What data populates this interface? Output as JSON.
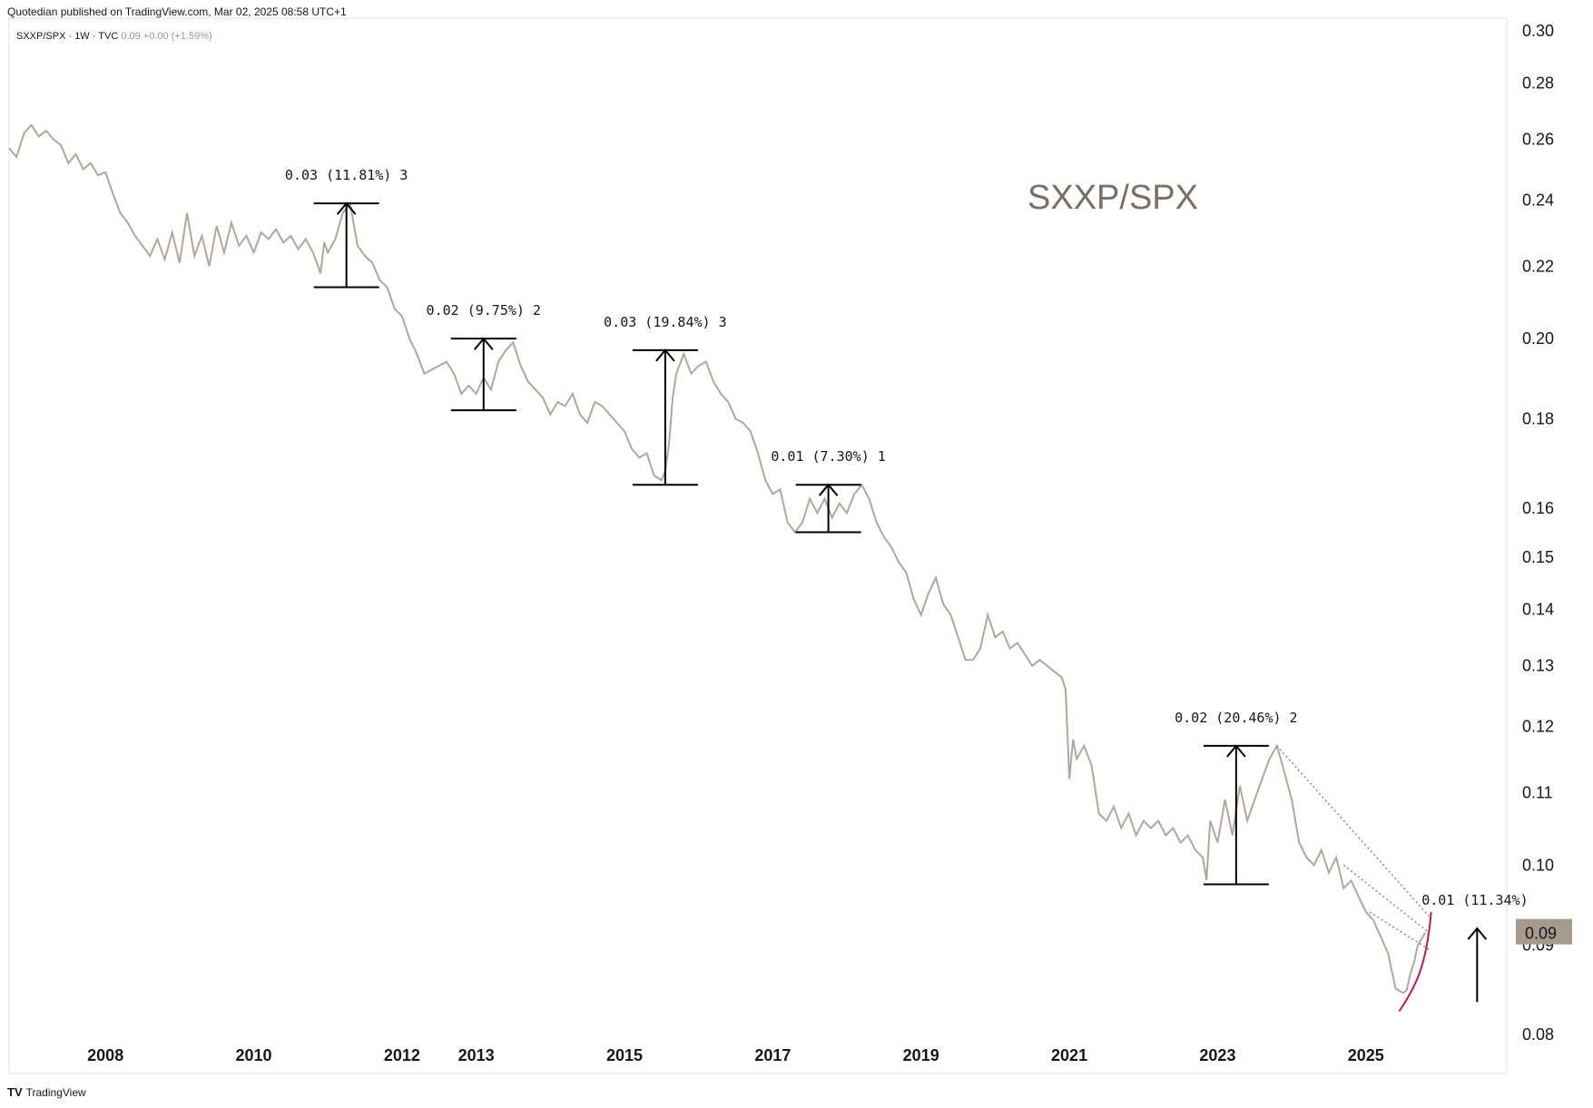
{
  "header": {
    "published": "Quotedian published on TradingView.com, Mar 02, 2025 08:58 UTC+1",
    "symbol": "SXXP/SPX · 1W · TVC",
    "last_value": "0.09 +0.00 (+1.59%)"
  },
  "footer": {
    "logo": "TV",
    "brand": "TradingView"
  },
  "colors": {
    "price_line": "#b0a79d",
    "curve": "#c2185b",
    "price_tag_bg": "#a69a8d",
    "trend_dots": "#888888"
  },
  "chart_data": {
    "type": "line",
    "title": "SXXP/SPX",
    "y_scale": "log",
    "ylim": [
      0.076,
      0.305
    ],
    "xlim": [
      2006.2,
      2026.4
    ],
    "x_ticks": [
      {
        "x": 2007.5,
        "label": "2008"
      },
      {
        "x": 2009.5,
        "label": "2010"
      },
      {
        "x": 2011.5,
        "label": "2012"
      },
      {
        "x": 2012.5,
        "label": "2013"
      },
      {
        "x": 2014.5,
        "label": "2015"
      },
      {
        "x": 2016.5,
        "label": "2017"
      },
      {
        "x": 2018.5,
        "label": "2019"
      },
      {
        "x": 2020.5,
        "label": "2021"
      },
      {
        "x": 2022.5,
        "label": "2023"
      },
      {
        "x": 2024.5,
        "label": "2025"
      }
    ],
    "y_ticks": [
      {
        "v": 0.3,
        "label": "0.30"
      },
      {
        "v": 0.28,
        "label": "0.28"
      },
      {
        "v": 0.26,
        "label": "0.26"
      },
      {
        "v": 0.24,
        "label": "0.24"
      },
      {
        "v": 0.22,
        "label": "0.22"
      },
      {
        "v": 0.2,
        "label": "0.20"
      },
      {
        "v": 0.18,
        "label": "0.18"
      },
      {
        "v": 0.16,
        "label": "0.16"
      },
      {
        "v": 0.15,
        "label": "0.15"
      },
      {
        "v": 0.14,
        "label": "0.14"
      },
      {
        "v": 0.13,
        "label": "0.13"
      },
      {
        "v": 0.12,
        "label": "0.12"
      },
      {
        "v": 0.11,
        "label": "0.11"
      },
      {
        "v": 0.1,
        "label": "0.10"
      },
      {
        "v": 0.09,
        "label": "0.09"
      },
      {
        "v": 0.08,
        "label": "0.08"
      }
    ],
    "price_tag": {
      "v": 0.0915,
      "label": "0.09"
    },
    "series": [
      {
        "points": [
          [
            2006.2,
            0.257
          ],
          [
            2006.3,
            0.254
          ],
          [
            2006.4,
            0.262
          ],
          [
            2006.5,
            0.265
          ],
          [
            2006.6,
            0.261
          ],
          [
            2006.7,
            0.263
          ],
          [
            2006.8,
            0.26
          ],
          [
            2006.9,
            0.258
          ],
          [
            2007.0,
            0.252
          ],
          [
            2007.1,
            0.255
          ],
          [
            2007.2,
            0.25
          ],
          [
            2007.3,
            0.252
          ],
          [
            2007.4,
            0.248
          ],
          [
            2007.5,
            0.249
          ],
          [
            2007.6,
            0.242
          ],
          [
            2007.7,
            0.236
          ],
          [
            2007.8,
            0.233
          ],
          [
            2007.9,
            0.229
          ],
          [
            2008.0,
            0.226
          ],
          [
            2008.1,
            0.223
          ],
          [
            2008.2,
            0.228
          ],
          [
            2008.3,
            0.222
          ],
          [
            2008.4,
            0.23
          ],
          [
            2008.5,
            0.221
          ],
          [
            2008.6,
            0.236
          ],
          [
            2008.7,
            0.223
          ],
          [
            2008.8,
            0.229
          ],
          [
            2008.9,
            0.22
          ],
          [
            2009.0,
            0.232
          ],
          [
            2009.1,
            0.224
          ],
          [
            2009.2,
            0.233
          ],
          [
            2009.3,
            0.226
          ],
          [
            2009.4,
            0.229
          ],
          [
            2009.5,
            0.224
          ],
          [
            2009.6,
            0.23
          ],
          [
            2009.7,
            0.228
          ],
          [
            2009.8,
            0.231
          ],
          [
            2009.9,
            0.227
          ],
          [
            2010.0,
            0.229
          ],
          [
            2010.1,
            0.225
          ],
          [
            2010.2,
            0.228
          ],
          [
            2010.3,
            0.224
          ],
          [
            2010.4,
            0.218
          ],
          [
            2010.45,
            0.227
          ],
          [
            2010.5,
            0.224
          ],
          [
            2010.6,
            0.228
          ],
          [
            2010.65,
            0.232
          ],
          [
            2010.7,
            0.236
          ],
          [
            2010.8,
            0.239
          ],
          [
            2010.9,
            0.226
          ],
          [
            2011.0,
            0.223
          ],
          [
            2011.1,
            0.221
          ],
          [
            2011.2,
            0.216
          ],
          [
            2011.3,
            0.214
          ],
          [
            2011.4,
            0.208
          ],
          [
            2011.5,
            0.206
          ],
          [
            2011.6,
            0.2
          ],
          [
            2011.7,
            0.196
          ],
          [
            2011.8,
            0.191
          ],
          [
            2011.9,
            0.192
          ],
          [
            2012.0,
            0.193
          ],
          [
            2012.1,
            0.194
          ],
          [
            2012.2,
            0.191
          ],
          [
            2012.3,
            0.186
          ],
          [
            2012.4,
            0.188
          ],
          [
            2012.5,
            0.186
          ],
          [
            2012.6,
            0.19
          ],
          [
            2012.7,
            0.187
          ],
          [
            2012.8,
            0.194
          ],
          [
            2012.9,
            0.197
          ],
          [
            2013.0,
            0.199
          ],
          [
            2013.1,
            0.193
          ],
          [
            2013.2,
            0.189
          ],
          [
            2013.3,
            0.187
          ],
          [
            2013.4,
            0.185
          ],
          [
            2013.5,
            0.181
          ],
          [
            2013.6,
            0.184
          ],
          [
            2013.7,
            0.183
          ],
          [
            2013.8,
            0.186
          ],
          [
            2013.9,
            0.181
          ],
          [
            2014.0,
            0.179
          ],
          [
            2014.1,
            0.184
          ],
          [
            2014.2,
            0.183
          ],
          [
            2014.3,
            0.181
          ],
          [
            2014.4,
            0.179
          ],
          [
            2014.5,
            0.177
          ],
          [
            2014.6,
            0.173
          ],
          [
            2014.7,
            0.171
          ],
          [
            2014.8,
            0.172
          ],
          [
            2014.9,
            0.167
          ],
          [
            2015.0,
            0.166
          ],
          [
            2015.05,
            0.168
          ],
          [
            2015.1,
            0.174
          ],
          [
            2015.15,
            0.185
          ],
          [
            2015.2,
            0.191
          ],
          [
            2015.3,
            0.196
          ],
          [
            2015.4,
            0.191
          ],
          [
            2015.5,
            0.193
          ],
          [
            2015.6,
            0.194
          ],
          [
            2015.7,
            0.189
          ],
          [
            2015.8,
            0.186
          ],
          [
            2015.9,
            0.184
          ],
          [
            2016.0,
            0.18
          ],
          [
            2016.1,
            0.179
          ],
          [
            2016.2,
            0.177
          ],
          [
            2016.3,
            0.172
          ],
          [
            2016.4,
            0.166
          ],
          [
            2016.5,
            0.163
          ],
          [
            2016.6,
            0.164
          ],
          [
            2016.7,
            0.157
          ],
          [
            2016.8,
            0.155
          ],
          [
            2016.9,
            0.157
          ],
          [
            2017.0,
            0.162
          ],
          [
            2017.1,
            0.159
          ],
          [
            2017.2,
            0.162
          ],
          [
            2017.3,
            0.158
          ],
          [
            2017.4,
            0.161
          ],
          [
            2017.5,
            0.159
          ],
          [
            2017.6,
            0.163
          ],
          [
            2017.7,
            0.165
          ],
          [
            2017.8,
            0.162
          ],
          [
            2017.9,
            0.157
          ],
          [
            2018.0,
            0.154
          ],
          [
            2018.1,
            0.152
          ],
          [
            2018.2,
            0.149
          ],
          [
            2018.3,
            0.147
          ],
          [
            2018.4,
            0.142
          ],
          [
            2018.5,
            0.139
          ],
          [
            2018.6,
            0.143
          ],
          [
            2018.7,
            0.146
          ],
          [
            2018.8,
            0.141
          ],
          [
            2018.9,
            0.139
          ],
          [
            2019.0,
            0.135
          ],
          [
            2019.1,
            0.131
          ],
          [
            2019.2,
            0.131
          ],
          [
            2019.3,
            0.133
          ],
          [
            2019.4,
            0.139
          ],
          [
            2019.5,
            0.135
          ],
          [
            2019.6,
            0.136
          ],
          [
            2019.7,
            0.133
          ],
          [
            2019.8,
            0.134
          ],
          [
            2019.9,
            0.132
          ],
          [
            2020.0,
            0.13
          ],
          [
            2020.1,
            0.131
          ],
          [
            2020.2,
            0.13
          ],
          [
            2020.3,
            0.129
          ],
          [
            2020.4,
            0.128
          ],
          [
            2020.45,
            0.126
          ],
          [
            2020.5,
            0.112
          ],
          [
            2020.55,
            0.118
          ],
          [
            2020.6,
            0.115
          ],
          [
            2020.7,
            0.117
          ],
          [
            2020.8,
            0.114
          ],
          [
            2020.9,
            0.107
          ],
          [
            2021.0,
            0.106
          ],
          [
            2021.1,
            0.108
          ],
          [
            2021.2,
            0.105
          ],
          [
            2021.3,
            0.107
          ],
          [
            2021.4,
            0.104
          ],
          [
            2021.5,
            0.106
          ],
          [
            2021.6,
            0.105
          ],
          [
            2021.7,
            0.106
          ],
          [
            2021.8,
            0.104
          ],
          [
            2021.9,
            0.105
          ],
          [
            2022.0,
            0.103
          ],
          [
            2022.1,
            0.104
          ],
          [
            2022.2,
            0.102
          ],
          [
            2022.3,
            0.101
          ],
          [
            2022.35,
            0.098
          ],
          [
            2022.4,
            0.106
          ],
          [
            2022.5,
            0.103
          ],
          [
            2022.6,
            0.109
          ],
          [
            2022.7,
            0.104
          ],
          [
            2022.8,
            0.111
          ],
          [
            2022.9,
            0.106
          ],
          [
            2023.0,
            0.109
          ],
          [
            2023.1,
            0.112
          ],
          [
            2023.2,
            0.115
          ],
          [
            2023.3,
            0.117
          ],
          [
            2023.4,
            0.113
          ],
          [
            2023.5,
            0.109
          ],
          [
            2023.6,
            0.103
          ],
          [
            2023.7,
            0.101
          ],
          [
            2023.8,
            0.1
          ],
          [
            2023.9,
            0.102
          ],
          [
            2024.0,
            0.099
          ],
          [
            2024.1,
            0.101
          ],
          [
            2024.2,
            0.097
          ],
          [
            2024.3,
            0.098
          ],
          [
            2024.4,
            0.096
          ],
          [
            2024.5,
            0.094
          ],
          [
            2024.6,
            0.093
          ],
          [
            2024.7,
            0.091
          ],
          [
            2024.8,
            0.089
          ],
          [
            2024.9,
            0.085
          ],
          [
            2025.0,
            0.0845
          ],
          [
            2025.05,
            0.0848
          ],
          [
            2025.1,
            0.0867
          ],
          [
            2025.15,
            0.088
          ],
          [
            2025.2,
            0.09
          ],
          [
            2025.3,
            0.0915
          ]
        ]
      }
    ],
    "annotations": [
      {
        "label": "0.03 (11.81%) 3",
        "x": 2010.75,
        "from": 0.214,
        "to": 0.239
      },
      {
        "label": "0.02 (9.75%) 2",
        "x": 2012.6,
        "from": 0.182,
        "to": 0.2
      },
      {
        "label": "0.03 (19.84%) 3",
        "x": 2015.05,
        "from": 0.165,
        "to": 0.197
      },
      {
        "label": "0.01 (7.30%) 1",
        "x": 2017.25,
        "from": 0.155,
        "to": 0.165
      },
      {
        "label": "0.02 (20.46%) 2",
        "x": 2022.75,
        "from": 0.0975,
        "to": 0.117
      },
      {
        "label": "0.01 (11.34%)",
        "x": 2026.0,
        "from": 0.0835,
        "to": 0.092
      }
    ],
    "trendlines": [
      {
        "from": [
          2023.3,
          0.117
        ],
        "to": [
          2025.35,
          0.0935
        ]
      },
      {
        "from": [
          2024.2,
          0.1
        ],
        "to": [
          2025.35,
          0.0915
        ]
      },
      {
        "from": [
          2024.55,
          0.094
        ],
        "to": [
          2025.35,
          0.0895
        ]
      }
    ],
    "curve": [
      [
        2024.95,
        0.0825
      ],
      [
        2025.2,
        0.0855
      ],
      [
        2025.32,
        0.088
      ],
      [
        2025.38,
        0.094
      ]
    ]
  }
}
